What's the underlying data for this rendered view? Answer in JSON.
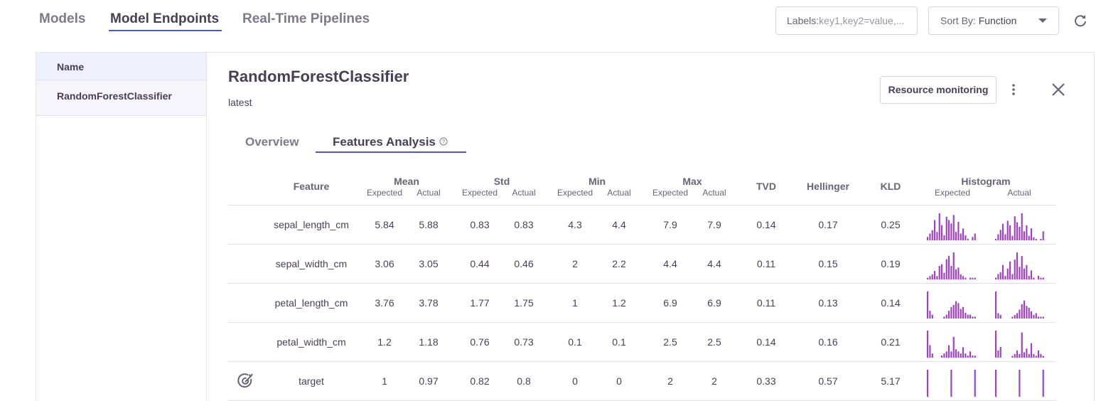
{
  "nav": {
    "tabs": [
      "Models",
      "Model Endpoints",
      "Real-Time Pipelines"
    ],
    "labels_filter": {
      "label": "Labels:",
      "placeholder": "key1,key2=value,..."
    },
    "sort": {
      "label": "Sort By:",
      "value": "Function"
    }
  },
  "list": {
    "header": "Name",
    "items": [
      "RandomForestClassifier"
    ]
  },
  "detail": {
    "title": "RandomForestClassifier",
    "tag": "latest",
    "button": "Resource monitoring",
    "tabs": [
      "Overview",
      "Features Analysis"
    ]
  },
  "table": {
    "headers": [
      "Feature",
      "Mean",
      "Std",
      "Min",
      "Max",
      "TVD",
      "Hellinger",
      "KLD",
      "Histogram"
    ],
    "sub": {
      "expected": "Expected",
      "actual": "Actual"
    },
    "rows": [
      [
        "sepal_length_cm",
        5.84,
        5.88,
        0.83,
        0.83,
        4.3,
        4.4,
        7.9,
        7.9,
        0.14,
        0.17,
        0.25
      ],
      [
        "sepal_width_cm",
        3.06,
        3.05,
        0.44,
        0.46,
        2,
        2.2,
        4.4,
        4.4,
        0.11,
        0.15,
        0.19
      ],
      [
        "petal_length_cm",
        3.76,
        3.78,
        1.77,
        1.75,
        1,
        1.2,
        6.9,
        6.9,
        0.11,
        0.13,
        0.14
      ],
      [
        "petal_width_cm",
        1.2,
        1.18,
        0.76,
        0.73,
        0.1,
        0.1,
        2.5,
        2.5,
        0.14,
        0.16,
        0.21
      ],
      [
        "target",
        1,
        0.97,
        0.82,
        0.8,
        0,
        0,
        2,
        2,
        0.33,
        0.57,
        5.17
      ]
    ],
    "histograms": [
      {
        "expected": [
          2,
          4,
          6,
          12,
          5,
          16,
          9,
          3,
          14,
          12,
          10,
          15,
          5,
          11,
          4,
          7,
          3,
          1,
          0,
          2,
          4
        ],
        "actual": [
          1,
          4,
          7,
          11,
          4,
          13,
          10,
          3,
          16,
          12,
          9,
          18,
          6,
          10,
          3,
          8,
          2,
          1,
          0,
          1,
          6
        ]
      },
      {
        "expected": [
          1,
          2,
          3,
          5,
          2,
          8,
          9,
          4,
          12,
          14,
          8,
          16,
          6,
          7,
          3,
          2,
          1,
          0,
          1,
          1,
          1
        ],
        "actual": [
          1,
          3,
          4,
          8,
          2,
          6,
          10,
          3,
          11,
          15,
          7,
          13,
          6,
          8,
          2,
          5,
          1,
          0,
          2,
          1,
          1
        ]
      },
      {
        "expected": [
          14,
          4,
          2,
          0,
          0,
          0,
          0,
          1,
          2,
          4,
          6,
          7,
          9,
          8,
          5,
          6,
          3,
          2,
          2,
          1,
          1
        ],
        "actual": [
          15,
          3,
          2,
          0,
          0,
          0,
          0,
          1,
          2,
          3,
          5,
          8,
          10,
          7,
          6,
          4,
          2,
          3,
          1,
          1,
          1
        ]
      },
      {
        "expected": [
          13,
          6,
          2,
          0,
          0,
          0,
          1,
          2,
          3,
          6,
          3,
          10,
          4,
          3,
          2,
          5,
          2,
          1,
          3,
          1,
          1
        ],
        "actual": [
          15,
          4,
          6,
          0,
          0,
          0,
          0,
          1,
          2,
          4,
          2,
          14,
          3,
          5,
          2,
          8,
          2,
          1,
          4,
          2,
          1
        ]
      },
      {
        "expected": [
          1,
          0,
          0,
          0,
          0,
          0,
          0,
          0,
          0,
          0,
          1,
          0,
          0,
          0,
          0,
          0,
          0,
          0,
          0,
          0,
          1
        ],
        "actual": [
          1,
          0,
          0,
          0,
          0,
          0,
          0,
          0,
          0,
          0,
          1,
          0,
          0,
          0,
          0,
          0,
          0,
          0,
          0,
          0,
          1
        ]
      }
    ],
    "bar_color": "#a03ec8"
  }
}
